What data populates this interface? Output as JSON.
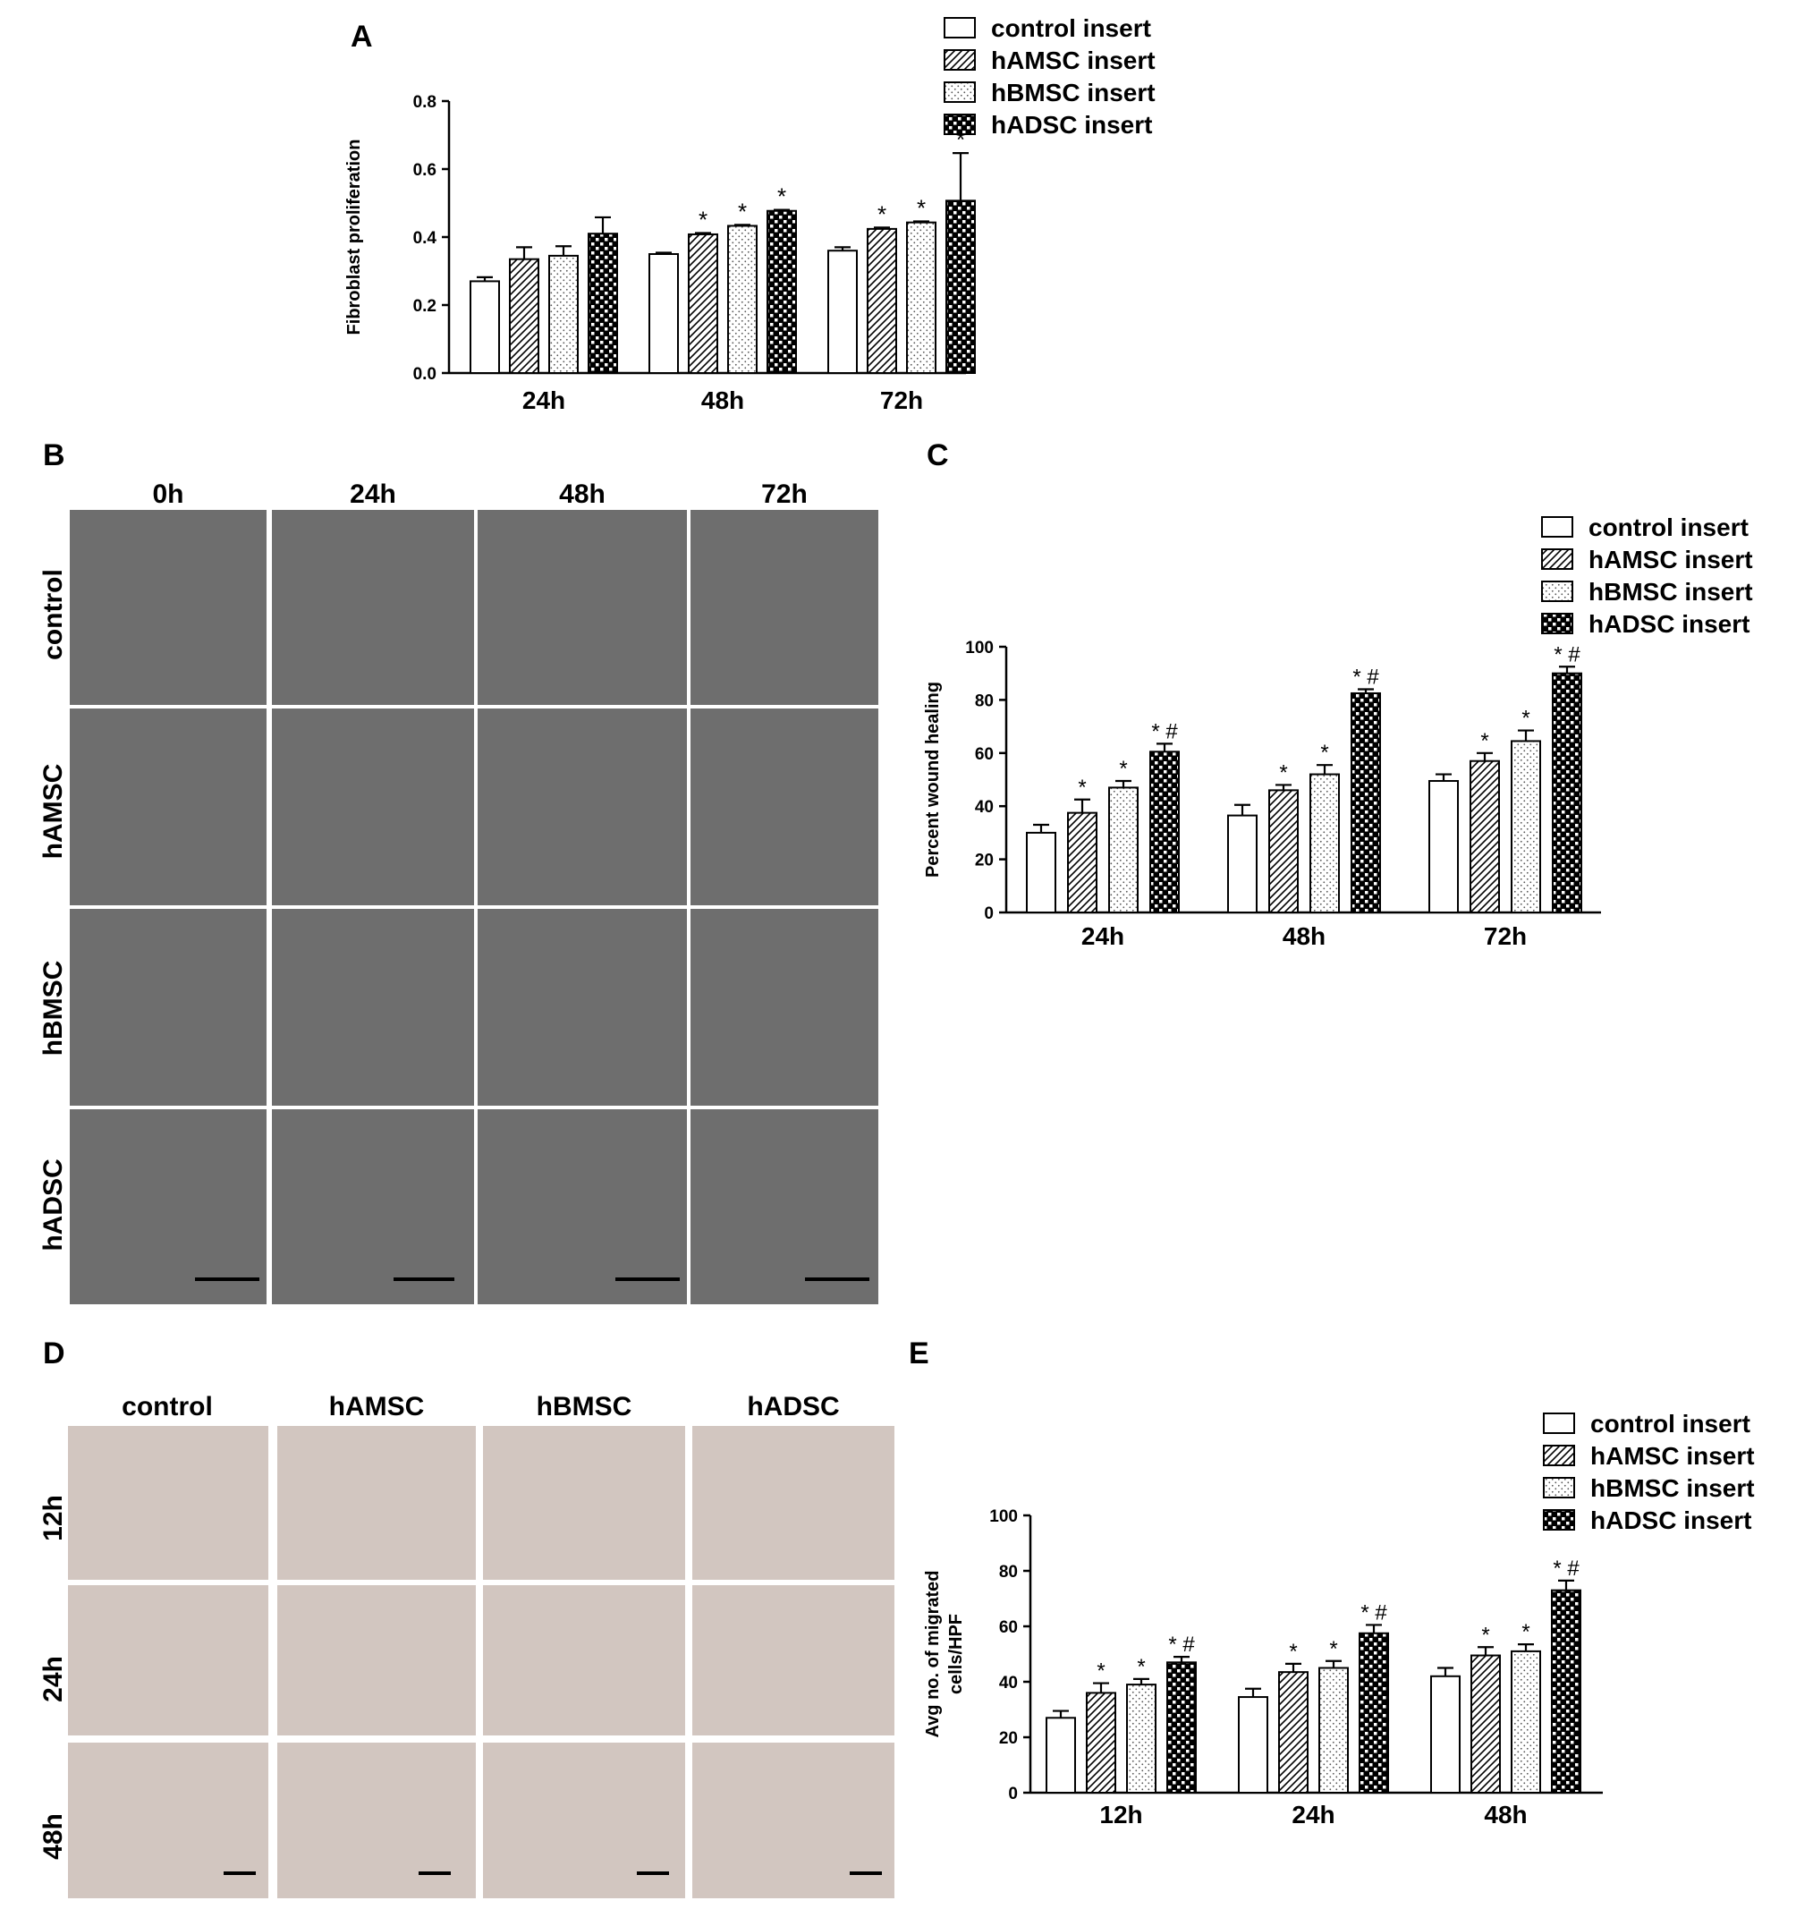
{
  "panels": {
    "A": "A",
    "B": "B",
    "C": "C",
    "D": "D",
    "E": "E"
  },
  "colors": {
    "bar_stroke": "#000000",
    "scale_bar": "#000000",
    "micro_gray": "#6e6e6e",
    "micro_stain": "#d2c6c0"
  },
  "chart_data": [
    {
      "panel": "A",
      "type": "bar",
      "ylabel": "Fibroblast proliferation",
      "xlabel": "",
      "categories": [
        "24h",
        "48h",
        "72h"
      ],
      "ylim": [
        0,
        0.8
      ],
      "yticks": [
        "0.0",
        "0.2",
        "0.4",
        "0.6",
        "0.8"
      ],
      "legend_position": "top-right",
      "series": [
        {
          "name": "control insert",
          "pattern": "blank",
          "values": [
            0.27,
            0.35,
            0.36
          ],
          "errors": [
            0.012,
            0.004,
            0.01
          ],
          "annotations": [
            "",
            "",
            ""
          ]
        },
        {
          "name": "hAMSC insert",
          "pattern": "hatch",
          "values": [
            0.335,
            0.408,
            0.424
          ],
          "errors": [
            0.035,
            0.004,
            0.004
          ],
          "annotations": [
            "",
            "*",
            "*"
          ]
        },
        {
          "name": "hBMSC insert",
          "pattern": "dots",
          "values": [
            0.345,
            0.433,
            0.443
          ],
          "errors": [
            0.028,
            0.003,
            0.003
          ],
          "annotations": [
            "",
            "*",
            "*"
          ]
        },
        {
          "name": "hADSC insert",
          "pattern": "checker",
          "values": [
            0.41,
            0.477,
            0.507
          ],
          "errors": [
            0.048,
            0.003,
            0.14
          ],
          "annotations": [
            "",
            "*",
            "*"
          ]
        }
      ]
    },
    {
      "panel": "C",
      "type": "bar",
      "ylabel": "Percent wound healing",
      "xlabel": "",
      "categories": [
        "24h",
        "48h",
        "72h"
      ],
      "ylim": [
        0,
        100
      ],
      "yticks": [
        "0",
        "20",
        "40",
        "60",
        "80",
        "100"
      ],
      "legend_position": "top-right",
      "series": [
        {
          "name": "control insert",
          "pattern": "blank",
          "values": [
            30,
            36.5,
            49.5
          ],
          "errors": [
            3,
            4,
            2.5
          ],
          "annotations": [
            "",
            "",
            ""
          ]
        },
        {
          "name": "hAMSC insert",
          "pattern": "hatch",
          "values": [
            37.5,
            46,
            57
          ],
          "errors": [
            5,
            2,
            3
          ],
          "annotations": [
            "*",
            "*",
            "*"
          ]
        },
        {
          "name": "hBMSC insert",
          "pattern": "dots",
          "values": [
            47,
            52,
            64.5
          ],
          "errors": [
            2.5,
            3.5,
            4
          ],
          "annotations": [
            "*",
            "*",
            "*"
          ]
        },
        {
          "name": "hADSC insert",
          "pattern": "checker",
          "values": [
            60.5,
            82.5,
            90
          ],
          "errors": [
            3,
            1.5,
            2.5
          ],
          "annotations": [
            "*#",
            "*#",
            "*#"
          ]
        }
      ]
    },
    {
      "panel": "E",
      "type": "bar",
      "ylabel": "Avg no. of migrated cells/HPF",
      "ylabel_lines": [
        "Avg no. of migrated",
        "cells/HPF"
      ],
      "xlabel": "",
      "categories": [
        "12h",
        "24h",
        "48h"
      ],
      "ylim": [
        0,
        100
      ],
      "yticks": [
        "0",
        "20",
        "40",
        "60",
        "80",
        "100"
      ],
      "legend_position": "top-right",
      "series": [
        {
          "name": "control insert",
          "pattern": "blank",
          "values": [
            27,
            34.5,
            42
          ],
          "errors": [
            2.5,
            3,
            3
          ],
          "annotations": [
            "",
            "",
            ""
          ]
        },
        {
          "name": "hAMSC insert",
          "pattern": "hatch",
          "values": [
            36,
            43.5,
            49.5
          ],
          "errors": [
            3.5,
            3,
            3
          ],
          "annotations": [
            "*",
            "*",
            "*"
          ]
        },
        {
          "name": "hBMSC insert",
          "pattern": "dots",
          "values": [
            39,
            45,
            51
          ],
          "errors": [
            2,
            2.5,
            2.5
          ],
          "annotations": [
            "*",
            "*",
            "*"
          ]
        },
        {
          "name": "hADSC insert",
          "pattern": "checker",
          "values": [
            47,
            57.5,
            73
          ],
          "errors": [
            2,
            3,
            3.5
          ],
          "annotations": [
            "*#",
            "*#",
            "*#"
          ]
        }
      ]
    }
  ],
  "micrographs_B": {
    "columns": [
      "0h",
      "24h",
      "48h",
      "72h"
    ],
    "rows": [
      "control",
      "hAMSC",
      "hBMSC",
      "hADSC"
    ]
  },
  "micrographs_D": {
    "columns": [
      "control",
      "hAMSC",
      "hBMSC",
      "hADSC"
    ],
    "rows": [
      "12h",
      "24h",
      "48h"
    ]
  }
}
